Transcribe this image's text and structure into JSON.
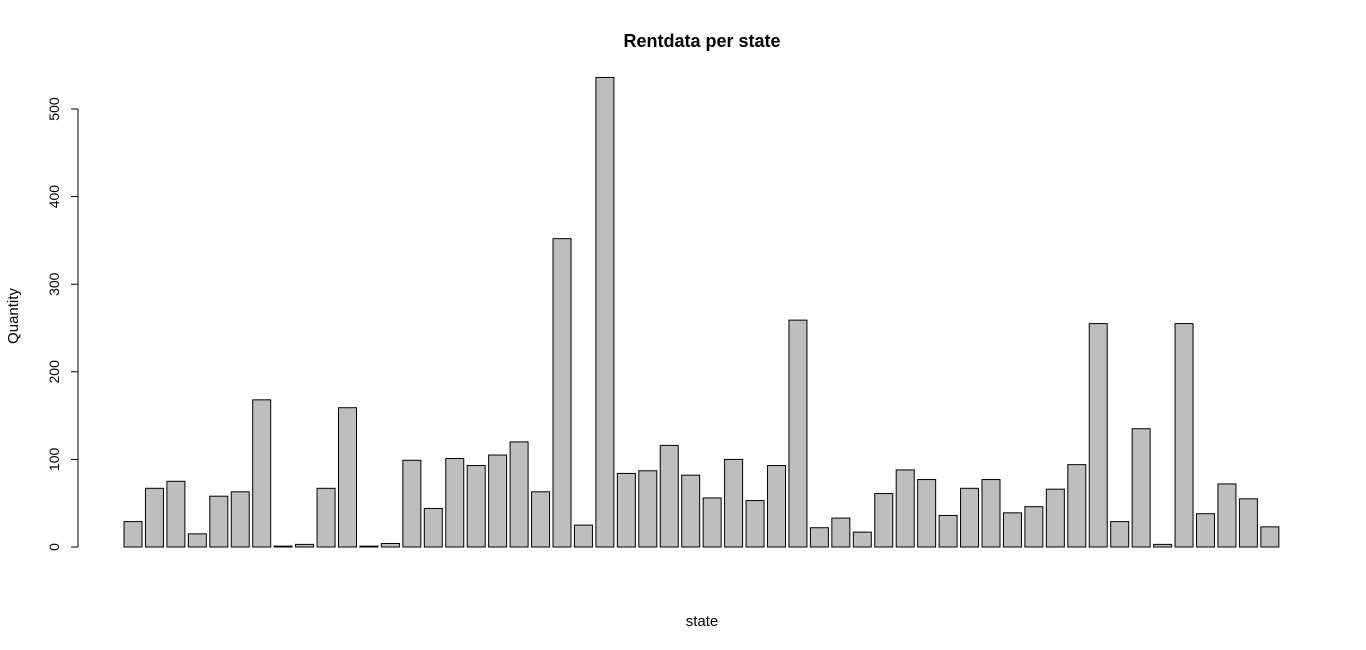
{
  "chart_data": {
    "type": "bar",
    "title": "Rentdata per state",
    "xlabel": "state",
    "ylabel": "Quantity",
    "ylim": [
      0,
      500
    ],
    "yticks": [
      0,
      100,
      200,
      300,
      400,
      500
    ],
    "grid": false,
    "legend": "none",
    "bar_fill": "#bebebe",
    "bar_edge": "#000000",
    "values": [
      29,
      67,
      75,
      15,
      58,
      63,
      168,
      1,
      3,
      67,
      159,
      1,
      4,
      99,
      44,
      101,
      93,
      105,
      120,
      63,
      352,
      25,
      536,
      84,
      87,
      116,
      82,
      56,
      100,
      53,
      93,
      259,
      22,
      33,
      17,
      61,
      88,
      77,
      36,
      67,
      77,
      39,
      46,
      66,
      94,
      255,
      29,
      135,
      3,
      255,
      38,
      72,
      55,
      23
    ]
  }
}
